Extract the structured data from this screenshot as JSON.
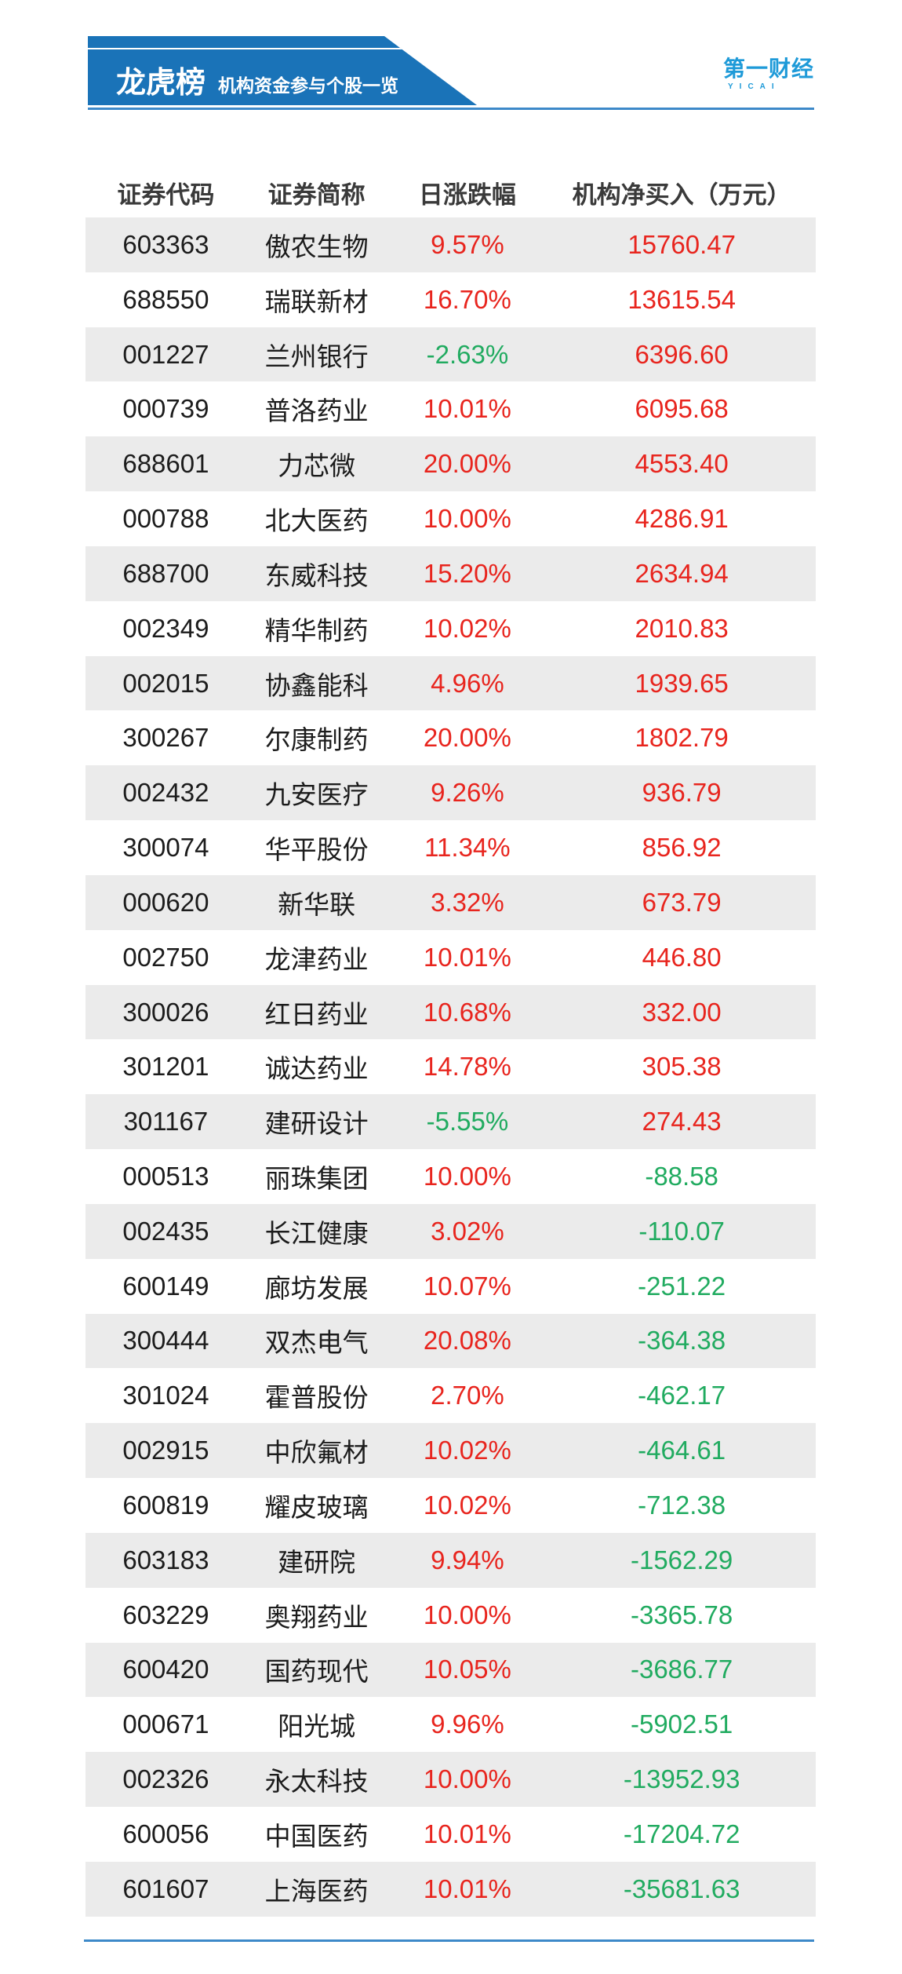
{
  "banner": {
    "title": "龙虎榜",
    "subtitle": "机构资金参与个股一览"
  },
  "logo": {
    "text": "第一财经",
    "subtext": "YICAI"
  },
  "chart_data": {
    "type": "table",
    "title": "龙虎榜 机构资金参与个股一览",
    "columns": [
      "证券代码",
      "证券简称",
      "日涨跌幅",
      "机构净买入（万元）"
    ],
    "rows": [
      {
        "code": "603363",
        "name": "傲农生物",
        "change": "9.57%",
        "net_buy": "15760.47"
      },
      {
        "code": "688550",
        "name": "瑞联新材",
        "change": "16.70%",
        "net_buy": "13615.54"
      },
      {
        "code": "001227",
        "name": "兰州银行",
        "change": "-2.63%",
        "net_buy": "6396.60"
      },
      {
        "code": "000739",
        "name": "普洛药业",
        "change": "10.01%",
        "net_buy": "6095.68"
      },
      {
        "code": "688601",
        "name": "力芯微",
        "change": "20.00%",
        "net_buy": "4553.40"
      },
      {
        "code": "000788",
        "name": "北大医药",
        "change": "10.00%",
        "net_buy": "4286.91"
      },
      {
        "code": "688700",
        "name": "东威科技",
        "change": "15.20%",
        "net_buy": "2634.94"
      },
      {
        "code": "002349",
        "name": "精华制药",
        "change": "10.02%",
        "net_buy": "2010.83"
      },
      {
        "code": "002015",
        "name": "协鑫能科",
        "change": "4.96%",
        "net_buy": "1939.65"
      },
      {
        "code": "300267",
        "name": "尔康制药",
        "change": "20.00%",
        "net_buy": "1802.79"
      },
      {
        "code": "002432",
        "name": "九安医疗",
        "change": "9.26%",
        "net_buy": "936.79"
      },
      {
        "code": "300074",
        "name": "华平股份",
        "change": "11.34%",
        "net_buy": "856.92"
      },
      {
        "code": "000620",
        "name": "新华联",
        "change": "3.32%",
        "net_buy": "673.79"
      },
      {
        "code": "002750",
        "name": "龙津药业",
        "change": "10.01%",
        "net_buy": "446.80"
      },
      {
        "code": "300026",
        "name": "红日药业",
        "change": "10.68%",
        "net_buy": "332.00"
      },
      {
        "code": "301201",
        "name": "诚达药业",
        "change": "14.78%",
        "net_buy": "305.38"
      },
      {
        "code": "301167",
        "name": "建研设计",
        "change": "-5.55%",
        "net_buy": "274.43"
      },
      {
        "code": "000513",
        "name": "丽珠集团",
        "change": "10.00%",
        "net_buy": "-88.58"
      },
      {
        "code": "002435",
        "name": "长江健康",
        "change": "3.02%",
        "net_buy": "-110.07"
      },
      {
        "code": "600149",
        "name": "廊坊发展",
        "change": "10.07%",
        "net_buy": "-251.22"
      },
      {
        "code": "300444",
        "name": "双杰电气",
        "change": "20.08%",
        "net_buy": "-364.38"
      },
      {
        "code": "301024",
        "name": "霍普股份",
        "change": "2.70%",
        "net_buy": "-462.17"
      },
      {
        "code": "002915",
        "name": "中欣氟材",
        "change": "10.02%",
        "net_buy": "-464.61"
      },
      {
        "code": "600819",
        "name": "耀皮玻璃",
        "change": "10.02%",
        "net_buy": "-712.38"
      },
      {
        "code": "603183",
        "name": "建研院",
        "change": "9.94%",
        "net_buy": "-1562.29"
      },
      {
        "code": "603229",
        "name": "奥翔药业",
        "change": "10.00%",
        "net_buy": "-3365.78"
      },
      {
        "code": "600420",
        "name": "国药现代",
        "change": "10.05%",
        "net_buy": "-3686.77"
      },
      {
        "code": "000671",
        "name": "阳光城",
        "change": "9.96%",
        "net_buy": "-5902.51"
      },
      {
        "code": "002326",
        "name": "永太科技",
        "change": "10.00%",
        "net_buy": "-13952.93"
      },
      {
        "code": "600056",
        "name": "中国医药",
        "change": "10.01%",
        "net_buy": "-17204.72"
      },
      {
        "code": "601607",
        "name": "上海医药",
        "change": "10.01%",
        "net_buy": "-35681.63"
      }
    ],
    "legend_position": "none",
    "grid": "off"
  },
  "colors": {
    "banner_blue": "#1a73b8",
    "logo_blue": "#1e9ad8",
    "rule_blue": "#3d89c9",
    "positive_red": "#e8251e",
    "negative_green": "#21ab60",
    "row_alt_bg": "#ebebeb",
    "header_text": "#3a3a3a",
    "body_text": "#1c1c1c"
  }
}
